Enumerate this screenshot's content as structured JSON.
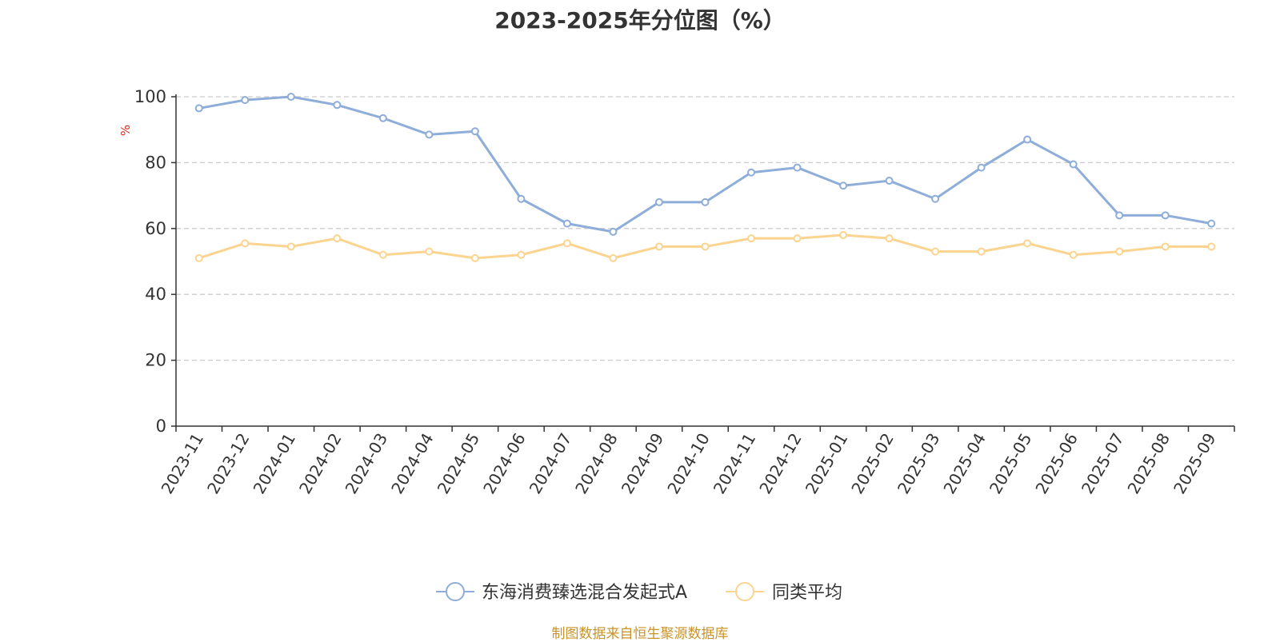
{
  "chart_data": {
    "type": "line",
    "title": "2023-2025年分位图（%）",
    "ylabel": "%",
    "ylim": [
      0,
      100
    ],
    "yticks": [
      0,
      20,
      40,
      60,
      80,
      100
    ],
    "grid": true,
    "legend_position": "bottom",
    "categories": [
      "2023-11",
      "2023-12",
      "2024-01",
      "2024-02",
      "2024-03",
      "2024-04",
      "2024-05",
      "2024-06",
      "2024-07",
      "2024-08",
      "2024-09",
      "2024-10",
      "2024-11",
      "2024-12",
      "2025-01",
      "2025-02",
      "2025-03",
      "2025-04",
      "2025-05",
      "2025-06",
      "2025-07",
      "2025-08",
      "2025-09"
    ],
    "series": [
      {
        "name": "东海消费臻选混合发起式A",
        "color": "#8eadd9",
        "values": [
          96.5,
          99,
          100,
          97.5,
          93.5,
          88.5,
          89.5,
          69,
          61.5,
          59,
          68,
          68,
          77,
          78.5,
          73,
          74.5,
          69,
          78.5,
          87,
          79.5,
          64,
          64,
          61.5
        ]
      },
      {
        "name": "同类平均",
        "color": "#fcd48f",
        "values": [
          51,
          55.5,
          54.5,
          57,
          52,
          53,
          51,
          52,
          55.5,
          51,
          54.5,
          54.5,
          57,
          57,
          58,
          57,
          53,
          53,
          55.5,
          52,
          53,
          54.5,
          54.5
        ]
      }
    ]
  },
  "ylabel_color": "#e6281a",
  "source": "制图数据来自恒生聚源数据库",
  "source_color": "#c8932a"
}
